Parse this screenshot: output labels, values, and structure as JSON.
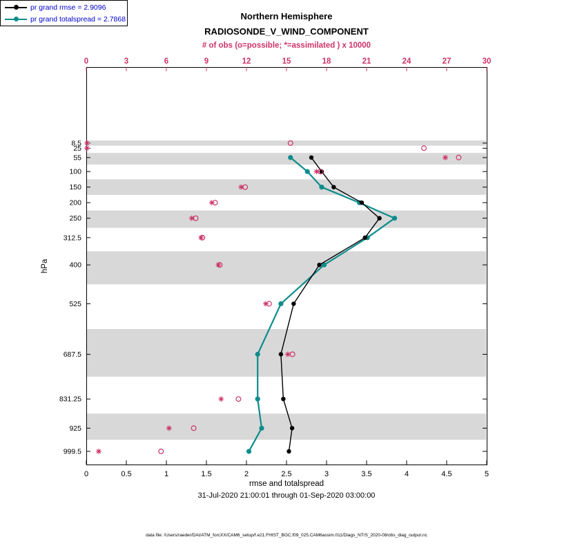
{
  "titles": {
    "region": "Northern Hemisphere",
    "variable": "RADIOSONDE_V_WIND_COMPONENT",
    "obs_axis": "# of obs (o=possible; *=assimilated ) x 10000"
  },
  "legend": {
    "rmse": "pr grand rmse = 2.9096",
    "totalspread": "pr grand totalspread = 2.7868"
  },
  "axes": {
    "y_label": "hPa",
    "x_label": "rmse and totalspread",
    "date_line": "31-Jul-2020 21:00:01 through 01-Sep-2020 03:00:00",
    "bottom_ticks": [
      0,
      0.5,
      1,
      1.5,
      2,
      2.5,
      3,
      3.5,
      4,
      4.5,
      5
    ],
    "top_ticks": [
      0,
      3,
      6,
      9,
      12,
      15,
      18,
      21,
      24,
      27,
      30
    ],
    "left_ticks": [
      8.5,
      25,
      55,
      100,
      150,
      200,
      250,
      312.5,
      400,
      525,
      687.5,
      831.25,
      925,
      999.5
    ]
  },
  "footer": "data file: /Users/raeder/DAI/ATM_forcXX/CAM6_setup/f.e21.FHIST_BGC.f09_025.CAM6assim.011/Diags_NTrS_2020-08/obs_diag_output.nc",
  "colors": {
    "rmse": "#000000",
    "totalspread": "#0d8c8c",
    "obs": "#cc3366",
    "legend_text": "#0000cc",
    "band": "#d8d8d8"
  },
  "chart_data": {
    "type": "line",
    "title": "Northern Hemisphere RADIOSONDE_V_WIND_COMPONENT",
    "xlabel": "rmse and totalspread",
    "x2label": "# of obs (o=possible; *=assimilated ) x 10000",
    "ylabel": "hPa",
    "xlim": [
      0,
      5
    ],
    "x2lim": [
      0,
      30
    ],
    "y_axis_note": "pressure in hPa, linear, increasing downward",
    "y_levels_hpa": [
      8.5,
      25,
      55,
      100,
      150,
      200,
      250,
      312.5,
      400,
      525,
      687.5,
      831.25,
      925,
      999.5
    ],
    "shaded_levels": [
      8.5,
      55,
      150,
      250,
      400,
      687.5,
      925
    ],
    "series": [
      {
        "name": "pr grand rmse = 2.9096",
        "axis": "bottom",
        "marker": "filled-circle",
        "color": "#000000",
        "values": [
          null,
          null,
          2.81,
          2.94,
          3.09,
          3.44,
          3.66,
          3.48,
          2.91,
          2.59,
          2.43,
          2.46,
          2.57,
          2.53
        ]
      },
      {
        "name": "pr grand totalspread = 2.7868",
        "axis": "bottom",
        "marker": "filled-circle",
        "color": "#0d8c8c",
        "values": [
          null,
          null,
          2.55,
          2.76,
          2.94,
          3.41,
          3.85,
          3.51,
          2.97,
          2.43,
          2.14,
          2.14,
          2.19,
          2.03
        ]
      },
      {
        "name": "# of obs possible x 10000",
        "axis": "top",
        "marker": "open-circle",
        "color": "#cc3366",
        "values": [
          15.3,
          25.3,
          27.9,
          17.55,
          11.9,
          9.65,
          8.2,
          8.7,
          10.0,
          13.7,
          15.45,
          11.4,
          8.05,
          5.6
        ]
      },
      {
        "name": "# of obs assimilated x 10000",
        "axis": "top",
        "marker": "asterisk",
        "color": "#cc3366",
        "values": [
          0.05,
          0.05,
          26.9,
          17.25,
          11.6,
          9.4,
          7.9,
          8.6,
          9.9,
          13.45,
          15.1,
          10.1,
          6.2,
          0.93
        ]
      }
    ]
  }
}
